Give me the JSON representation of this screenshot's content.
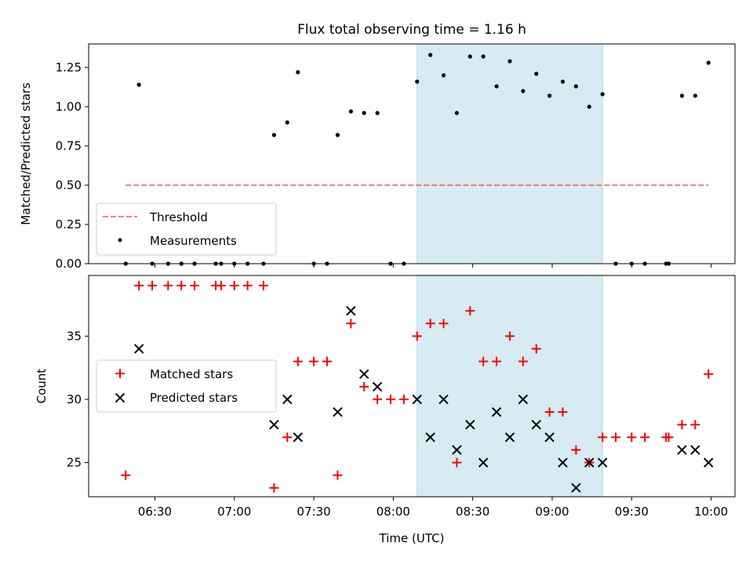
{
  "chart_data": [
    {
      "type": "scatter",
      "title": "Flux total observing time = 1.16 h",
      "ylabel": "Matched/Predicted stars",
      "xlim": [
        "06:05",
        "10:09"
      ],
      "ylim": [
        0,
        1.4
      ],
      "yticks": [
        "0.00",
        "0.25",
        "0.50",
        "0.75",
        "1.00",
        "1.25"
      ],
      "grid": false,
      "legend": {
        "placement": "lower-left",
        "entries": [
          "Threshold",
          "Measurements"
        ]
      },
      "highlight_span": {
        "x0": "08:09",
        "x1": "09:19",
        "color": "#add8e6"
      },
      "threshold": {
        "name": "Threshold",
        "y": 0.5,
        "x0": "06:19",
        "x1": "09:59",
        "color": "#f08080"
      },
      "series": [
        {
          "name": "Measurements",
          "marker": "dot",
          "color": "#000000",
          "points": [
            [
              "06:19",
              0.0
            ],
            [
              "06:24",
              1.14
            ],
            [
              "06:29",
              0.0
            ],
            [
              "06:35",
              0.0
            ],
            [
              "06:40",
              0.0
            ],
            [
              "06:45",
              0.0
            ],
            [
              "06:53",
              0.0
            ],
            [
              "06:55",
              0.0
            ],
            [
              "07:00",
              0.0
            ],
            [
              "07:05",
              0.0
            ],
            [
              "07:11",
              0.0
            ],
            [
              "07:15",
              0.82
            ],
            [
              "07:20",
              0.9
            ],
            [
              "07:24",
              1.22
            ],
            [
              "07:30",
              0.0
            ],
            [
              "07:35",
              0.0
            ],
            [
              "07:39",
              0.82
            ],
            [
              "07:44",
              0.97
            ],
            [
              "07:49",
              0.96
            ],
            [
              "07:54",
              0.96
            ],
            [
              "07:59",
              0.0
            ],
            [
              "08:04",
              0.0
            ],
            [
              "08:09",
              1.16
            ],
            [
              "08:14",
              1.33
            ],
            [
              "08:19",
              1.2
            ],
            [
              "08:24",
              0.96
            ],
            [
              "08:29",
              1.32
            ],
            [
              "08:34",
              1.32
            ],
            [
              "08:39",
              1.13
            ],
            [
              "08:44",
              1.29
            ],
            [
              "08:49",
              1.1
            ],
            [
              "08:54",
              1.21
            ],
            [
              "08:59",
              1.07
            ],
            [
              "09:04",
              1.16
            ],
            [
              "09:09",
              1.13
            ],
            [
              "09:14",
              1.0
            ],
            [
              "09:19",
              1.08
            ],
            [
              "09:24",
              0.0
            ],
            [
              "09:30",
              0.0
            ],
            [
              "09:35",
              0.0
            ],
            [
              "09:43",
              0.0
            ],
            [
              "09:44",
              0.0
            ],
            [
              "09:49",
              1.07
            ],
            [
              "09:54",
              1.07
            ],
            [
              "09:59",
              1.28
            ]
          ]
        }
      ]
    },
    {
      "type": "scatter",
      "xlabel": "Time (UTC)",
      "ylabel": "Count",
      "xlim": [
        "06:05",
        "10:09"
      ],
      "ylim": [
        22.3,
        39.8
      ],
      "xticks": [
        "06:30",
        "07:00",
        "07:30",
        "08:00",
        "08:30",
        "09:00",
        "09:30",
        "10:00"
      ],
      "yticks": [
        "25",
        "30",
        "35"
      ],
      "grid": false,
      "legend": {
        "placement": "center-left",
        "entries": [
          "Matched stars",
          "Predicted stars"
        ]
      },
      "highlight_span": {
        "x0": "08:09",
        "x1": "09:19",
        "color": "#add8e6"
      },
      "series": [
        {
          "name": "Matched stars",
          "marker": "plus",
          "color": "#ff0000",
          "points": [
            [
              "06:19",
              24
            ],
            [
              "06:24",
              39
            ],
            [
              "06:29",
              39
            ],
            [
              "06:35",
              39
            ],
            [
              "06:40",
              39
            ],
            [
              "06:45",
              39
            ],
            [
              "06:53",
              39
            ],
            [
              "06:55",
              39
            ],
            [
              "07:00",
              39
            ],
            [
              "07:05",
              39
            ],
            [
              "07:11",
              39
            ],
            [
              "07:15",
              23
            ],
            [
              "07:20",
              27
            ],
            [
              "07:24",
              33
            ],
            [
              "07:30",
              33
            ],
            [
              "07:35",
              33
            ],
            [
              "07:39",
              24
            ],
            [
              "07:44",
              36
            ],
            [
              "07:49",
              31
            ],
            [
              "07:54",
              30
            ],
            [
              "07:59",
              30
            ],
            [
              "08:04",
              30
            ],
            [
              "08:09",
              35
            ],
            [
              "08:14",
              36
            ],
            [
              "08:19",
              36
            ],
            [
              "08:24",
              25
            ],
            [
              "08:29",
              37
            ],
            [
              "08:34",
              33
            ],
            [
              "08:39",
              33
            ],
            [
              "08:44",
              35
            ],
            [
              "08:49",
              33
            ],
            [
              "08:54",
              34
            ],
            [
              "08:59",
              29
            ],
            [
              "09:04",
              29
            ],
            [
              "09:09",
              26
            ],
            [
              "09:14",
              25
            ],
            [
              "09:19",
              27
            ],
            [
              "09:24",
              27
            ],
            [
              "09:30",
              27
            ],
            [
              "09:35",
              27
            ],
            [
              "09:43",
              27
            ],
            [
              "09:44",
              27
            ],
            [
              "09:49",
              28
            ],
            [
              "09:54",
              28
            ],
            [
              "09:59",
              32
            ]
          ]
        },
        {
          "name": "Predicted stars",
          "marker": "x",
          "color": "#000000",
          "points": [
            [
              "06:24",
              34
            ],
            [
              "07:15",
              28
            ],
            [
              "07:20",
              30
            ],
            [
              "07:24",
              27
            ],
            [
              "07:39",
              29
            ],
            [
              "07:44",
              37
            ],
            [
              "07:49",
              32
            ],
            [
              "07:54",
              31
            ],
            [
              "08:09",
              30
            ],
            [
              "08:14",
              27
            ],
            [
              "08:19",
              30
            ],
            [
              "08:24",
              26
            ],
            [
              "08:29",
              28
            ],
            [
              "08:34",
              25
            ],
            [
              "08:39",
              29
            ],
            [
              "08:44",
              27
            ],
            [
              "08:49",
              30
            ],
            [
              "08:54",
              28
            ],
            [
              "08:59",
              27
            ],
            [
              "09:04",
              25
            ],
            [
              "09:09",
              23
            ],
            [
              "09:14",
              25
            ],
            [
              "09:19",
              25
            ],
            [
              "09:49",
              26
            ],
            [
              "09:54",
              26
            ],
            [
              "09:59",
              25
            ]
          ]
        }
      ]
    }
  ]
}
